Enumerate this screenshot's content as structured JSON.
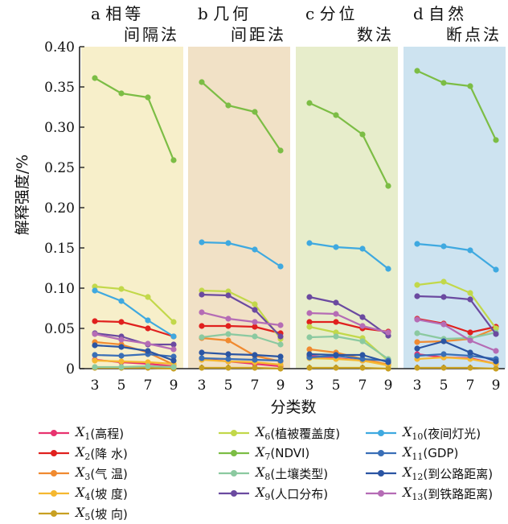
{
  "chart_data": {
    "type": "line",
    "ylabel": "解释强度/%",
    "xlabel": "分类数",
    "ylim": [
      0,
      0.4
    ],
    "yticks": [
      "0",
      "0.05",
      "0.10",
      "0.15",
      "0.20",
      "0.25",
      "0.30",
      "0.35",
      "0.40"
    ],
    "categories": [
      "3",
      "5",
      "7",
      "9"
    ],
    "legend_placement": "bottom",
    "panels": [
      {
        "letter": "a",
        "line1": "相等",
        "line2": "间隔法",
        "bg": "#f7efca"
      },
      {
        "letter": "b",
        "line1": "几何",
        "line2": "间距法",
        "bg": "#f1e1c6"
      },
      {
        "letter": "c",
        "line1": "分位",
        "line2": "数法",
        "bg": "#e7edcb"
      },
      {
        "letter": "d",
        "line1": "自然",
        "line2": "断点法",
        "bg": "#cde3f0"
      }
    ],
    "series": [
      {
        "sym": "X",
        "sub": "1",
        "label": "(高程)",
        "color": "#e8336f",
        "values": [
          [
            0.011,
            0.008,
            0.006,
            0.003
          ],
          [
            0.012,
            0.009,
            0.006,
            0.003
          ],
          [
            0.016,
            0.013,
            0.01,
            0.005
          ],
          [
            0.018,
            0.014,
            0.013,
            0.006
          ]
        ]
      },
      {
        "sym": "X",
        "sub": "2",
        "label": "(降 水)",
        "color": "#e0201e",
        "values": [
          [
            0.059,
            0.058,
            0.05,
            0.04
          ],
          [
            0.053,
            0.053,
            0.052,
            0.044
          ],
          [
            0.058,
            0.058,
            0.05,
            0.046
          ],
          [
            0.062,
            0.056,
            0.045,
            0.052
          ]
        ]
      },
      {
        "sym": "X",
        "sub": "3",
        "label": "(气 温)",
        "color": "#f08a30",
        "values": [
          [
            0.033,
            0.03,
            0.02,
            0.005
          ],
          [
            0.038,
            0.035,
            0.016,
            0.009
          ],
          [
            0.024,
            0.02,
            0.012,
            0.005
          ],
          [
            0.033,
            0.034,
            0.037,
            0.05
          ]
        ]
      },
      {
        "sym": "X",
        "sub": "4",
        "label": "(坡 度)",
        "color": "#f5b830",
        "values": [
          [
            0.01,
            0.009,
            0.008,
            0.006
          ],
          [
            0.011,
            0.009,
            0.008,
            0.005
          ],
          [
            0.013,
            0.012,
            0.01,
            0.004
          ],
          [
            0.012,
            0.014,
            0.012,
            0.006
          ]
        ]
      },
      {
        "sym": "X",
        "sub": "5",
        "label": "(坡 向)",
        "color": "#c8a022",
        "values": [
          [
            0.001,
            0.001,
            0.001,
            0.0
          ],
          [
            0.001,
            0.001,
            0.001,
            0.0
          ],
          [
            0.001,
            0.001,
            0.001,
            0.0
          ],
          [
            0.001,
            0.001,
            0.001,
            0.0
          ]
        ]
      },
      {
        "sym": "X",
        "sub": "6",
        "label": "(植被覆盖度)",
        "color": "#c2d84a",
        "values": [
          [
            0.102,
            0.099,
            0.089,
            0.058
          ],
          [
            0.097,
            0.096,
            0.08,
            0.037
          ],
          [
            0.052,
            0.045,
            0.038,
            0.01
          ],
          [
            0.104,
            0.108,
            0.094,
            0.05
          ]
        ]
      },
      {
        "sym": "X",
        "sub": "7",
        "label": "(NDVI)",
        "color": "#7cbd45",
        "values": [
          [
            0.361,
            0.342,
            0.337,
            0.259
          ],
          [
            0.356,
            0.327,
            0.319,
            0.271
          ],
          [
            0.33,
            0.315,
            0.291,
            0.227
          ],
          [
            0.37,
            0.355,
            0.351,
            0.284
          ]
        ]
      },
      {
        "sym": "X",
        "sub": "8",
        "label": "(土壤类型)",
        "color": "#8bc9a0",
        "values": [
          [
            0.002,
            0.002,
            0.003,
            0.002
          ],
          [
            0.039,
            0.043,
            0.04,
            0.03
          ],
          [
            0.039,
            0.04,
            0.034,
            0.012
          ],
          [
            0.044,
            0.037,
            0.038,
            0.045
          ]
        ]
      },
      {
        "sym": "X",
        "sub": "9",
        "label": "(人口分布)",
        "color": "#6b4aa0",
        "values": [
          [
            0.044,
            0.04,
            0.03,
            0.03
          ],
          [
            0.092,
            0.091,
            0.073,
            0.04
          ],
          [
            0.089,
            0.082,
            0.064,
            0.041
          ],
          [
            0.09,
            0.089,
            0.086,
            0.043
          ]
        ]
      },
      {
        "sym": "X",
        "sub": "10",
        "label": "(夜间灯光)",
        "color": "#3fa9e0",
        "values": [
          [
            0.097,
            0.084,
            0.06,
            0.04
          ],
          [
            0.157,
            0.156,
            0.148,
            0.127
          ],
          [
            0.156,
            0.151,
            0.149,
            0.124
          ],
          [
            0.155,
            0.152,
            0.147,
            0.123
          ]
        ]
      },
      {
        "sym": "X",
        "sub": "11",
        "label": "(GDP)",
        "color": "#3a6fb7",
        "values": [
          [
            0.017,
            0.016,
            0.018,
            0.015
          ],
          [
            0.013,
            0.012,
            0.011,
            0.01
          ],
          [
            0.014,
            0.016,
            0.012,
            0.01
          ],
          [
            0.016,
            0.018,
            0.016,
            0.012
          ]
        ]
      },
      {
        "sym": "X",
        "sub": "12",
        "label": "(到公路距离)",
        "color": "#2b55a3",
        "values": [
          [
            0.029,
            0.027,
            0.022,
            0.01
          ],
          [
            0.02,
            0.018,
            0.017,
            0.015
          ],
          [
            0.018,
            0.017,
            0.017,
            0.008
          ],
          [
            0.025,
            0.034,
            0.02,
            0.009
          ]
        ]
      },
      {
        "sym": "X",
        "sub": "13",
        "label": "(到铁路距离)",
        "color": "#b56cb5",
        "values": [
          [
            0.043,
            0.036,
            0.031,
            0.024
          ],
          [
            0.07,
            0.062,
            0.058,
            0.054
          ],
          [
            0.069,
            0.068,
            0.053,
            0.045
          ],
          [
            0.061,
            0.055,
            0.035,
            0.022
          ]
        ]
      }
    ]
  }
}
